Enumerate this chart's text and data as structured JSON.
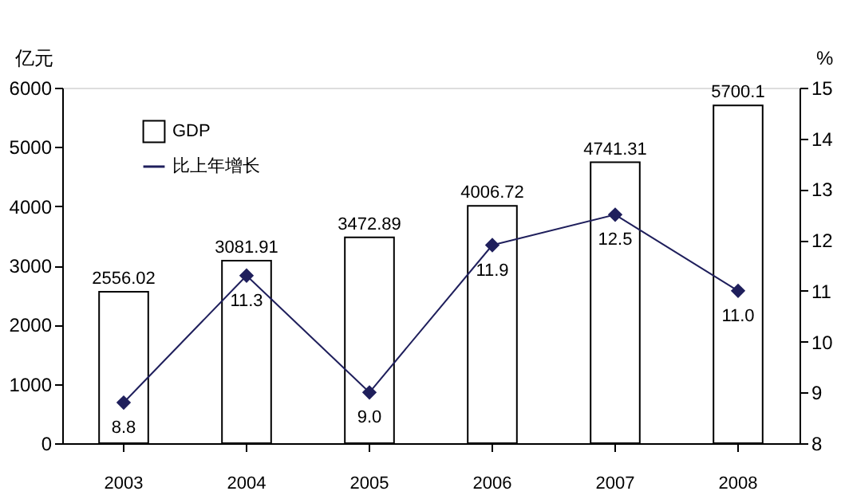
{
  "chart_data": {
    "type": "bar",
    "categories": [
      "2003",
      "2004",
      "2005",
      "2006",
      "2007",
      "2008"
    ],
    "ylabel": "亿元",
    "y2label": "%",
    "ylim": [
      0,
      6000
    ],
    "yticks": [
      0,
      1000,
      2000,
      3000,
      4000,
      5000,
      6000
    ],
    "y2lim": [
      8,
      15
    ],
    "y2ticks": [
      8,
      9,
      10,
      11,
      12,
      13,
      14,
      15
    ],
    "legend": "top left",
    "grid": false,
    "data_labels": true,
    "series": [
      {
        "name": "GDP",
        "color": "#ffffff",
        "values": [
          2556.02,
          3081.91,
          3472.89,
          4006.72,
          4741.31,
          5700.1
        ]
      },
      {
        "name": "比上年增长",
        "type": "line",
        "axis": "y2",
        "color": "#1f1f5c",
        "marker": "diamond",
        "values": [
          8.8,
          11.3,
          9.0,
          11.9,
          12.5,
          11.0
        ],
        "value_labels": [
          "8.8",
          "11.3",
          "9.0",
          "11.9",
          "12.5",
          "11.0"
        ]
      }
    ]
  }
}
